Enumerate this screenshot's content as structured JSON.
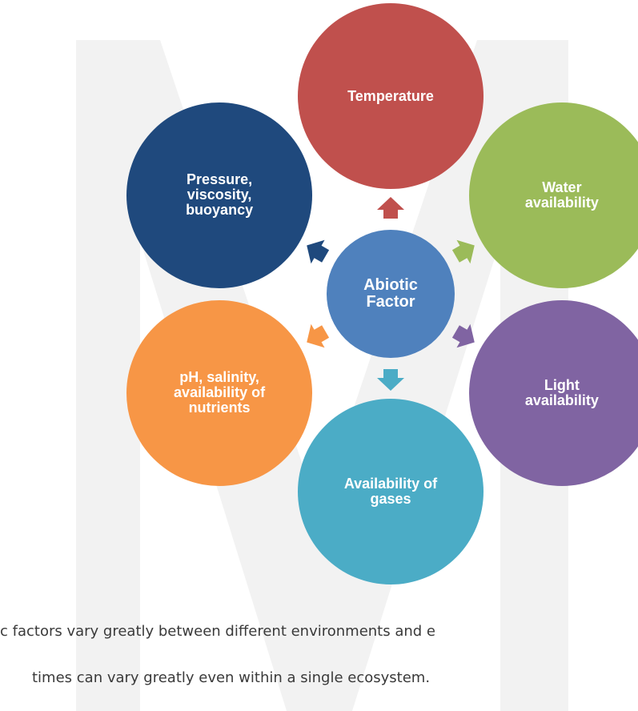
{
  "diagram": {
    "center": {
      "label": "Abiotic\nFactor",
      "color": "#4f81bd"
    },
    "factors": [
      {
        "id": "temperature",
        "label": "Temperature",
        "color": "#c0504d"
      },
      {
        "id": "water",
        "label": "Water\navailability",
        "color": "#9bbb59"
      },
      {
        "id": "light",
        "label": "Light\navailability",
        "color": "#8064a2"
      },
      {
        "id": "gases",
        "label": "Availability of\ngases",
        "color": "#4bacc6"
      },
      {
        "id": "ph",
        "label": "pH, salinity,\navailability of\nnutrients",
        "color": "#f79646"
      },
      {
        "id": "pressure",
        "label": "Pressure,\nviscosity,\nbuoyancy",
        "color": "#1f497d"
      }
    ]
  },
  "text": {
    "line1": "c factors vary greatly between different environments and e",
    "line2": "times can vary greatly even within a single ecosystem."
  },
  "watermark": {
    "color": "#f2f2f2"
  }
}
